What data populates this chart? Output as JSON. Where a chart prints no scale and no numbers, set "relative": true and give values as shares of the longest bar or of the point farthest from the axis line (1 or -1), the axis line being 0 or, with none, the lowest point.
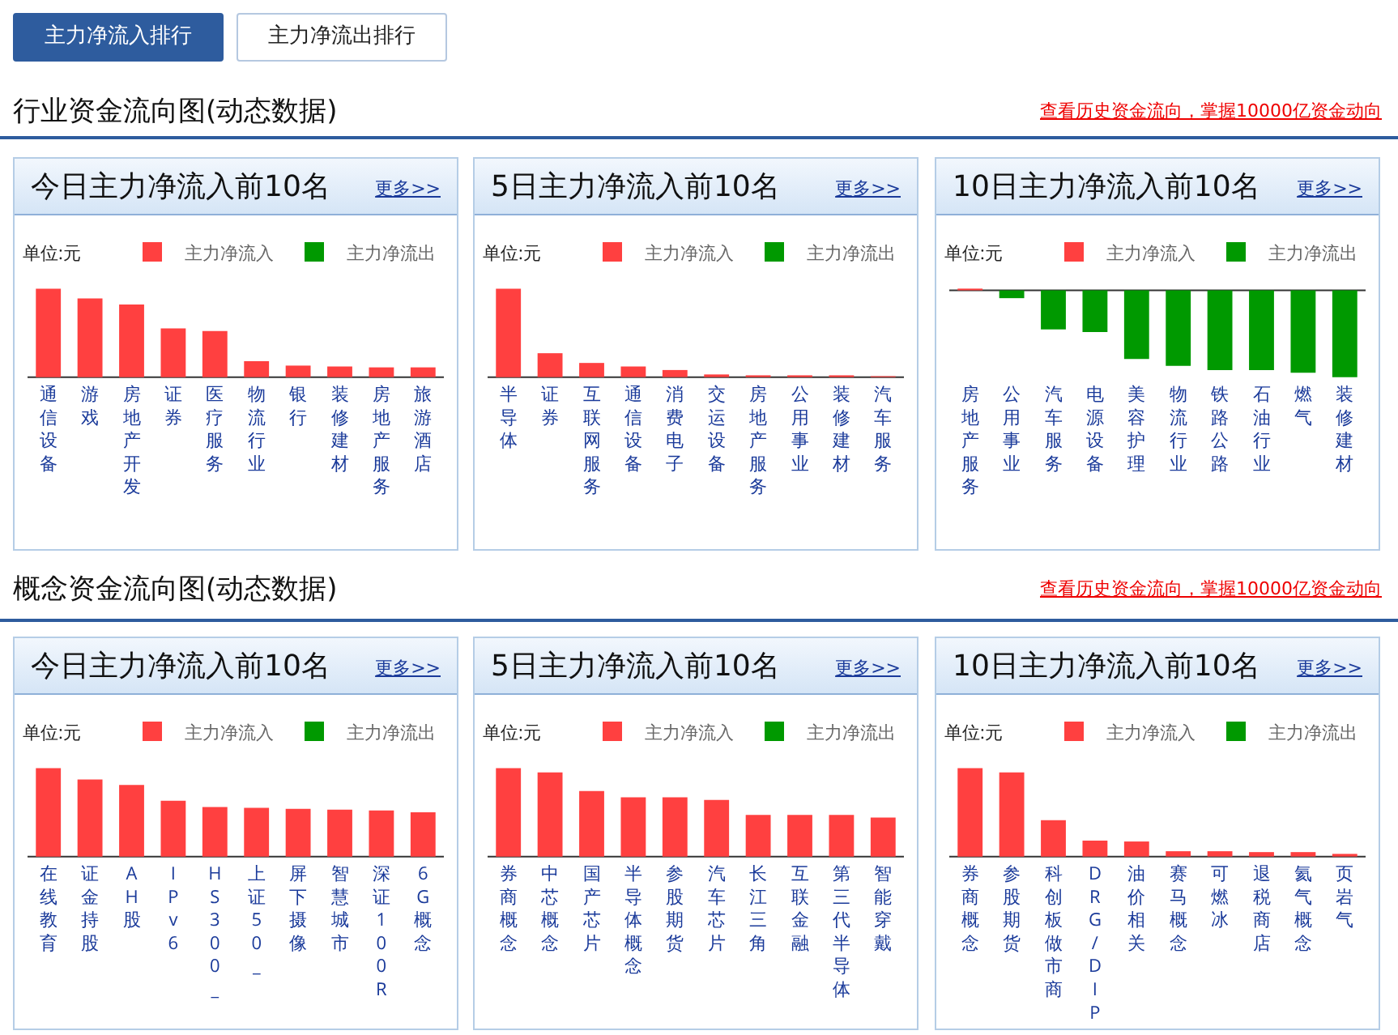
{
  "chart_data": [
    {
      "type": "bar",
      "title": "今日主力净流入前10名",
      "annotations": [
        "主力净流入排行",
        "主力净流出排行",
        "行业资金流向图(动态数据)",
        "查看历史资金流向，掌握10000亿资金动向",
        "单位:元",
        "更多>>"
      ],
      "categories": [
        "通信设备",
        "游戏",
        "房地产开发",
        "证券",
        "医疗服务",
        "物流行业",
        "银行",
        "装修建材",
        "房地产服务",
        "旅游酒店"
      ],
      "relative": true,
      "stacked": true,
      "legend": "top right",
      "tick_labels": "x",
      "series": [
        {
          "name": "主力净流入",
          "color": "#ff4040",
          "values": [
            1,
            0.89,
            0.82,
            0.55,
            0.52,
            0.18,
            0.13,
            0.12,
            0.11,
            0.11
          ]
        },
        {
          "name": "主力净流出",
          "color": "#009900",
          "values": [
            null,
            null,
            null,
            null,
            null,
            null,
            null,
            null,
            null,
            null
          ]
        }
      ]
    },
    {
      "type": "bar",
      "title": "5日主力净流入前10名",
      "annotations": [
        "单位:元",
        "更多>>"
      ],
      "categories": [
        "半导体",
        "证券",
        "互联网服务",
        "通信设备",
        "消费电子",
        "交运设备",
        "房地产服务",
        "公用事业",
        "装修建材",
        "汽车服务"
      ],
      "relative": true,
      "stacked": true,
      "legend": "top right",
      "tick_labels": "x",
      "series": [
        {
          "name": "主力净流入",
          "color": "#ff4040",
          "values": [
            1,
            0.27,
            0.16,
            0.12,
            0.08,
            0.03,
            0.02,
            0.02,
            0.02,
            0.01
          ]
        },
        {
          "name": "主力净流出",
          "color": "#009900",
          "values": [
            null,
            null,
            null,
            null,
            null,
            null,
            null,
            null,
            null,
            null
          ]
        }
      ]
    },
    {
      "type": "bar",
      "title": "10日主力净流入前10名",
      "annotations": [
        "单位:元",
        "更多>>"
      ],
      "categories": [
        "房地产服务",
        "公用事业",
        "汽车服务",
        "电源设备",
        "美容护理",
        "物流行业",
        "铁路公路",
        "石油行业",
        "燃气",
        "装修建材"
      ],
      "relative": true,
      "stacked": true,
      "legend": "top right",
      "tick_labels": "x",
      "series": [
        {
          "name": "主力净流入",
          "color": "#ff4040",
          "values": [
            0.02,
            null,
            null,
            null,
            null,
            null,
            null,
            null,
            null,
            null
          ]
        },
        {
          "name": "主力净流出",
          "color": "#009900",
          "values": [
            null,
            -0.09,
            -0.45,
            -0.48,
            -0.79,
            -0.87,
            -0.92,
            -0.92,
            -0.95,
            -1
          ]
        }
      ]
    },
    {
      "type": "bar",
      "title": "今日主力净流入前10名",
      "annotations": [
        "概念资金流向图(动态数据)",
        "查看历史资金流向，掌握10000亿资金动向",
        "单位:元",
        "更多>>"
      ],
      "categories": [
        "在线教育",
        "证金持股",
        "AH股",
        "IPv6",
        "HS300_",
        "上证50_",
        "屏下摄像",
        "智慧城市",
        "深证100R",
        "6G概念"
      ],
      "relative": true,
      "stacked": true,
      "legend": "top right",
      "tick_labels": "x",
      "series": [
        {
          "name": "主力净流入",
          "color": "#ff4040",
          "values": [
            1,
            0.87,
            0.81,
            0.63,
            0.56,
            0.55,
            0.54,
            0.53,
            0.52,
            0.5
          ]
        },
        {
          "name": "主力净流出",
          "color": "#009900",
          "values": [
            null,
            null,
            null,
            null,
            null,
            null,
            null,
            null,
            null,
            null
          ]
        }
      ]
    },
    {
      "type": "bar",
      "title": "5日主力净流入前10名",
      "annotations": [
        "单位:元",
        "更多>>"
      ],
      "categories": [
        "券商概念",
        "中芯概念",
        "国产芯片",
        "半导体概念",
        "参股期货",
        "汽车芯片",
        "长江三角",
        "互联金融",
        "第三代半导体",
        "智能穿戴"
      ],
      "relative": true,
      "stacked": true,
      "legend": "top right",
      "tick_labels": "x",
      "series": [
        {
          "name": "主力净流入",
          "color": "#ff4040",
          "values": [
            1,
            0.95,
            0.74,
            0.67,
            0.67,
            0.64,
            0.47,
            0.47,
            0.47,
            0.44
          ]
        },
        {
          "name": "主力净流出",
          "color": "#009900",
          "values": [
            null,
            null,
            null,
            null,
            null,
            null,
            null,
            null,
            null,
            null
          ]
        }
      ]
    },
    {
      "type": "bar",
      "title": "10日主力净流入前10名",
      "annotations": [
        "单位:元",
        "更多>>"
      ],
      "categories": [
        "券商概念",
        "参股期货",
        "科创板做市商",
        "DRG/DIP",
        "油价相关",
        "赛马概念",
        "可燃冰",
        "退税商店",
        "氦气概念",
        "页岩气"
      ],
      "relative": true,
      "stacked": true,
      "legend": "top right",
      "tick_labels": "x",
      "series": [
        {
          "name": "主力净流入",
          "color": "#ff4040",
          "values": [
            1,
            0.95,
            0.41,
            0.18,
            0.17,
            0.06,
            0.06,
            0.05,
            0.05,
            0.03
          ]
        },
        {
          "name": "主力净流出",
          "color": "#009900",
          "values": [
            null,
            null,
            null,
            null,
            null,
            null,
            null,
            null,
            null,
            null
          ]
        }
      ]
    }
  ]
}
